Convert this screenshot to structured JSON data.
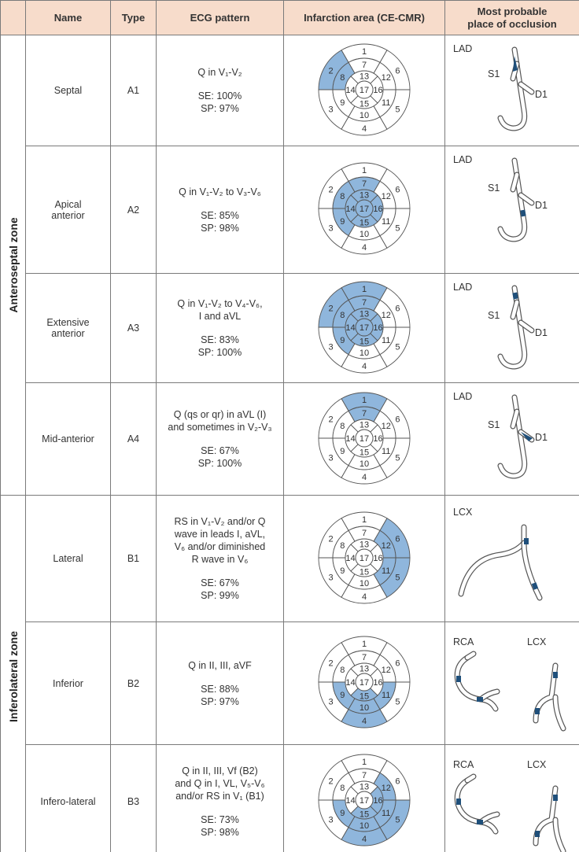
{
  "header": {
    "zone": "",
    "name": "Name",
    "type": "Type",
    "ecg": "ECG pattern",
    "infarction": "Infarction area (CE-CMR)",
    "occlusion_line1": "Most probable",
    "occlusion_line2": "place of occlusion"
  },
  "zones": [
    {
      "label": "Anteroseptal zone",
      "rows": 4
    },
    {
      "label": "Inferolateral zone",
      "rows": 3
    }
  ],
  "segment_labels": [
    "1",
    "2",
    "3",
    "4",
    "5",
    "6",
    "7",
    "8",
    "9",
    "10",
    "11",
    "12",
    "13",
    "14",
    "15",
    "16",
    "17"
  ],
  "colors": {
    "header_bg": "#f7dccb",
    "infarct": "#8fb6dc",
    "occlusion": "#1f4f7a"
  },
  "rows": [
    {
      "name": "Septal",
      "type": "A1",
      "ecg": [
        "Q in V₁-V₂"
      ],
      "se": "SE: 100%",
      "sp": "SP: 97%",
      "shaded": [
        2,
        8
      ],
      "arteries": [
        "LAD"
      ],
      "branches": [
        "S1",
        "D1"
      ]
    },
    {
      "name": "Apical anterior",
      "type": "A2",
      "ecg": [
        "Q in V₁-V₂ to V₃-V₆"
      ],
      "se": "SE: 85%",
      "sp": "SP: 98%",
      "shaded": [
        7,
        8,
        9,
        13,
        14,
        15,
        16,
        17
      ],
      "arteries": [
        "LAD"
      ],
      "branches": [
        "S1",
        "D1"
      ]
    },
    {
      "name": "Extensive anterior",
      "type": "A3",
      "ecg": [
        "Q in V₁-V₂ to V₄-V₆,",
        "I and aVL"
      ],
      "se": "SE: 83%",
      "sp": "SP: 100%",
      "shaded": [
        1,
        2,
        7,
        8,
        9,
        13,
        14,
        15,
        16,
        17
      ],
      "arteries": [
        "LAD"
      ],
      "branches": [
        "S1",
        "D1"
      ]
    },
    {
      "name": "Mid-anterior",
      "type": "A4",
      "ecg": [
        "Q (qs or qr) in aVL (I)",
        "and sometimes in V₂-V₃"
      ],
      "se": "SE: 67%",
      "sp": "SP: 100%",
      "shaded": [
        1,
        7
      ],
      "arteries": [
        "LAD"
      ],
      "branches": [
        "S1",
        "D1"
      ]
    },
    {
      "name": "Lateral",
      "type": "B1",
      "ecg": [
        "RS in V₁-V₂ and/or Q",
        "wave in leads I, aVL,",
        "V₆ and/or diminished",
        "R wave in V₆"
      ],
      "se": "SE: 67%",
      "sp": "SP: 99%",
      "shaded": [
        5,
        6,
        11,
        12
      ],
      "arteries": [
        "LCX"
      ],
      "branches": []
    },
    {
      "name": "Inferior",
      "type": "B2",
      "ecg": [
        "Q in II, III, aVF"
      ],
      "se": "SE: 88%",
      "sp": "SP: 97%",
      "shaded": [
        4,
        10,
        15,
        9,
        11
      ],
      "arteries": [
        "RCA",
        "LCX"
      ],
      "branches": []
    },
    {
      "name": "Infero-lateral",
      "type": "B3",
      "ecg": [
        "Q in II, III, Vf (B2)",
        "and Q in I, VL, V₅-V₆",
        "and/or RS in V₁ (B1)"
      ],
      "se": "SE: 73%",
      "sp": "SP: 98%",
      "shaded": [
        4,
        5,
        10,
        11,
        15,
        16,
        12,
        9
      ],
      "arteries": [
        "RCA",
        "LCX"
      ],
      "branches": []
    }
  ]
}
